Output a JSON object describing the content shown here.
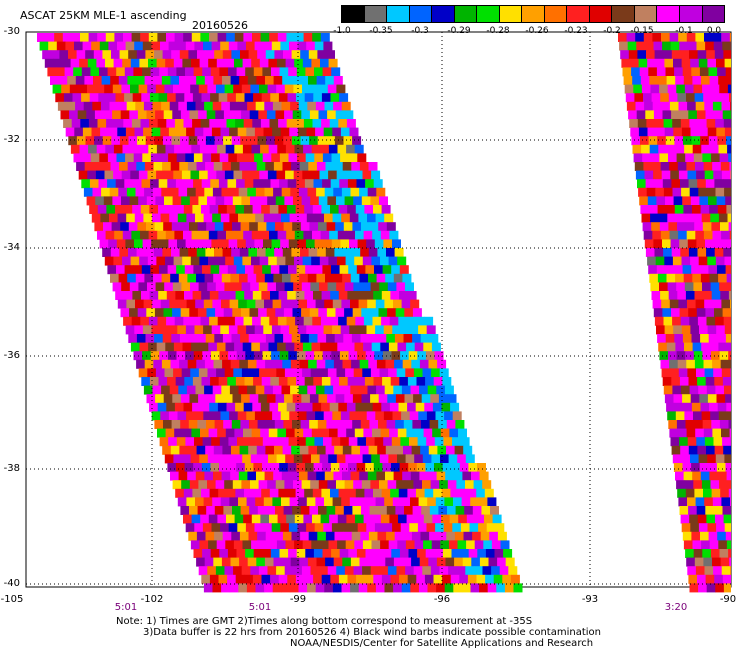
{
  "header": {
    "title": "ASCAT 25KM MLE-1 ascending",
    "date": "20160526"
  },
  "colorbar": {
    "colors": [
      "#000000",
      "#707070",
      "#00c8ff",
      "#0064ff",
      "#0000c8",
      "#00b400",
      "#00e000",
      "#ffe000",
      "#ffa000",
      "#ff7000",
      "#ff2020",
      "#e00000",
      "#7a3a1a",
      "#c08060",
      "#ff00ff",
      "#c000e0",
      "#8000a0"
    ],
    "labels": [
      "-1.0",
      "-0.35",
      "-0.3",
      "-0.29",
      "-0.28",
      "-0.26",
      "-0.23",
      "-0.2",
      "-0.15",
      "-0.1",
      "0.0"
    ]
  },
  "axes": {
    "lat_labels": [
      "-30",
      "-32",
      "-34",
      "-36",
      "-38",
      "-40"
    ],
    "lon_labels": [
      "-105",
      "-102",
      "-99",
      "-96",
      "-93",
      "-90"
    ],
    "time_labels": [
      "5:01",
      "5:01",
      "3:20"
    ]
  },
  "notes": {
    "line1": "Note: 1) Times are GMT 2)Times along bottom correspond to measurement at -35S",
    "line2": "3)Data buffer is 22 hrs from 20160526 4) Black wind barbs indicate possible contamination",
    "line3": "NOAA/NESDIS/Center for Satellite Applications and Research"
  }
}
